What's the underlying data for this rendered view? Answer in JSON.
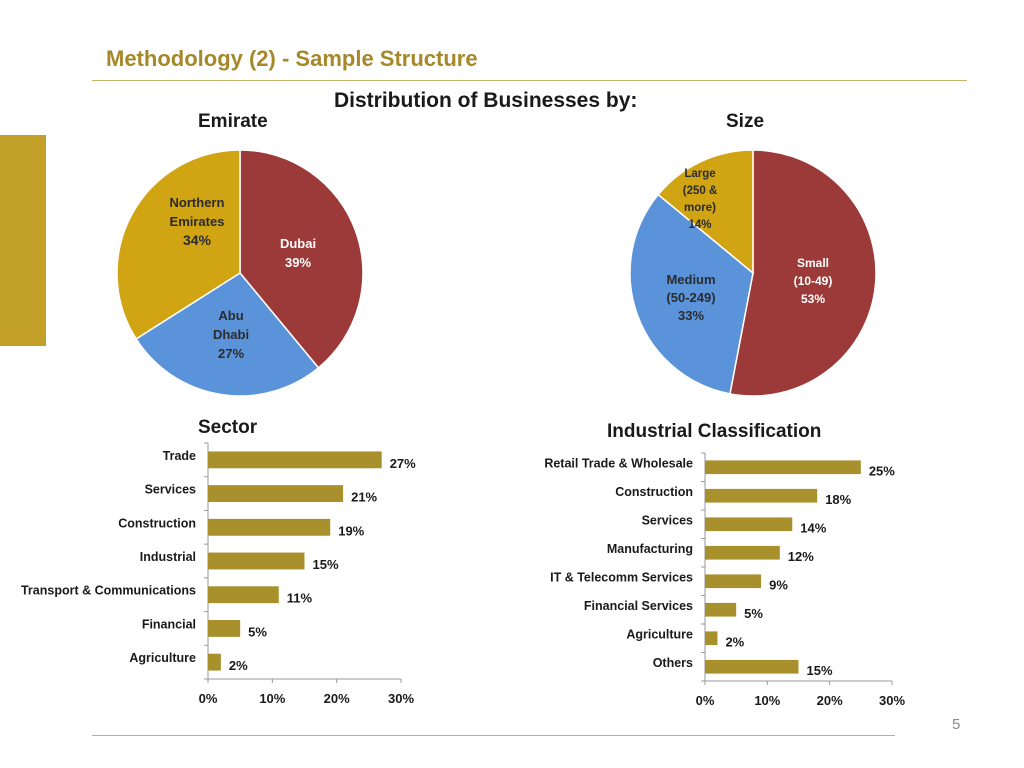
{
  "slide": {
    "title": "Methodology (2) - Sample Structure",
    "heading": "Distribution of Businesses by:",
    "page_number": "5"
  },
  "colors": {
    "dark_red": "#9b3a38",
    "blue": "#5b93db",
    "gold": "#d0a413",
    "bar": "#a8902c",
    "title": "#a6882a"
  },
  "chart_data": [
    {
      "type": "pie",
      "title": "Emirate",
      "slices": [
        {
          "label_lines": [
            "Dubai"
          ],
          "pct_label": "39%",
          "value": 39,
          "color": "#9b3a38",
          "text_color": "#ffffff"
        },
        {
          "label_lines": [
            "Abu",
            "Dhabi"
          ],
          "pct_label": "27%",
          "value": 27,
          "color": "#5b93db",
          "text_color": "#2b2b2b"
        },
        {
          "label_lines": [
            "Northern",
            "Emirates"
          ],
          "pct_label": "34%",
          "value": 34,
          "color": "#d0a413",
          "text_color": "#2b2b2b"
        }
      ]
    },
    {
      "type": "pie",
      "title": "Size",
      "slices": [
        {
          "label_lines": [
            "Small",
            "(10-49)"
          ],
          "pct_label": "53%",
          "value": 53,
          "color": "#9b3a38",
          "text_color": "#ffffff"
        },
        {
          "label_lines": [
            "Medium",
            "(50-249)"
          ],
          "pct_label": "33%",
          "value": 33,
          "color": "#5b93db",
          "text_color": "#2b2b2b"
        },
        {
          "label_lines": [
            "Large",
            "(250 &",
            "more)"
          ],
          "pct_label": "14%",
          "value": 14,
          "color": "#d0a413",
          "text_color": "#2b2b2b"
        }
      ]
    },
    {
      "type": "bar",
      "orientation": "horizontal",
      "title": "Sector",
      "categories": [
        "Trade",
        "Services",
        "Construction",
        "Industrial",
        "Transport & Communications",
        "Financial",
        "Agriculture"
      ],
      "values": [
        27,
        21,
        19,
        15,
        11,
        5,
        2
      ],
      "value_labels": [
        "27%",
        "21%",
        "19%",
        "15%",
        "11%",
        "5%",
        "2%"
      ],
      "xlim": [
        0,
        30
      ],
      "xticks": [
        "0%",
        "10%",
        "20%",
        "30%"
      ],
      "grid": false
    },
    {
      "type": "bar",
      "orientation": "horizontal",
      "title": "Industrial Classification",
      "categories": [
        "Retail Trade & Wholesale",
        "Construction",
        "Services",
        "Manufacturing",
        "IT & Telecomm Services",
        "Financial Services",
        "Agriculture",
        "Others"
      ],
      "values": [
        25,
        18,
        14,
        12,
        9,
        5,
        2,
        15
      ],
      "value_labels": [
        "25%",
        "18%",
        "14%",
        "12%",
        "9%",
        "5%",
        "2%",
        "15%"
      ],
      "xlim": [
        0,
        30
      ],
      "xticks": [
        "0%",
        "10%",
        "20%",
        "30%"
      ],
      "grid": false
    }
  ]
}
